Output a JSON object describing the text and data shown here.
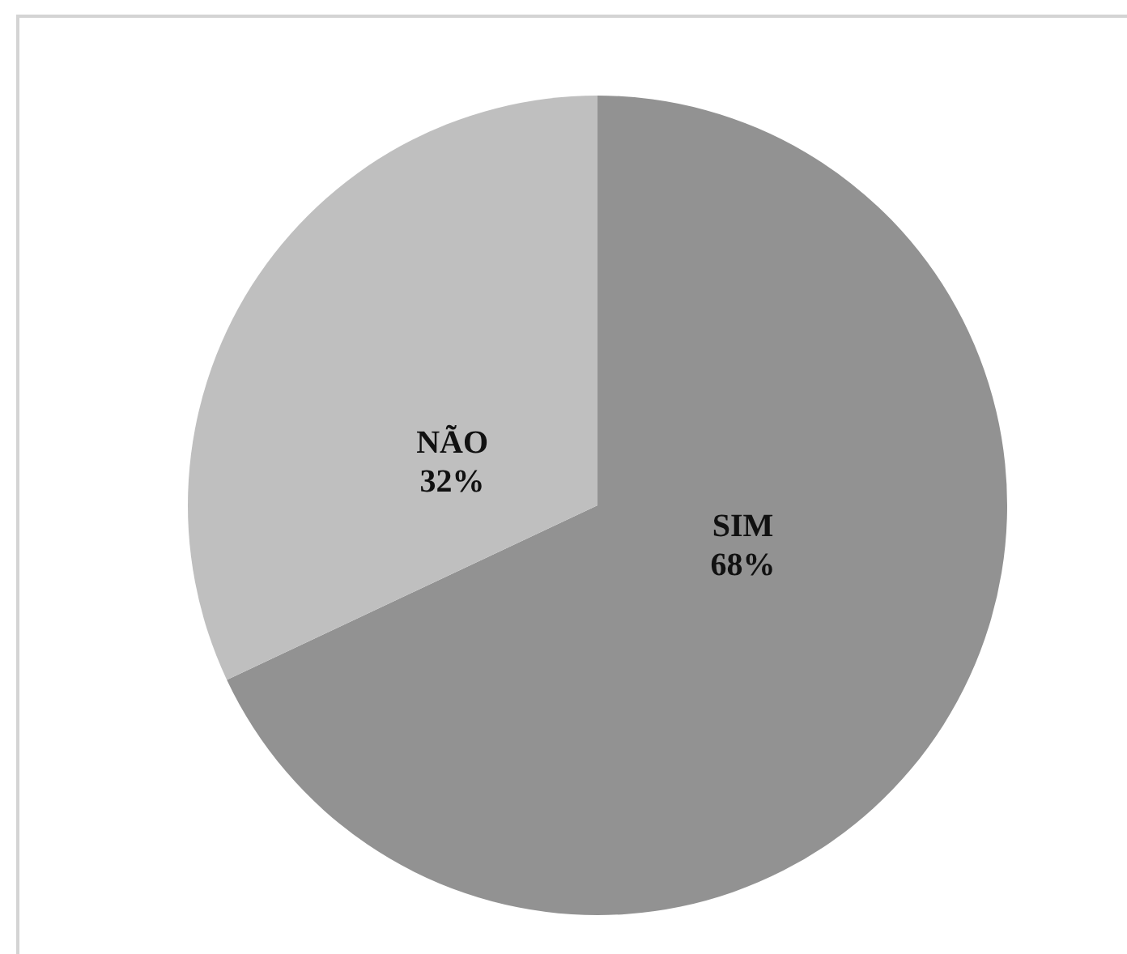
{
  "chart_data": {
    "type": "pie",
    "categories": [
      "SIM",
      "NÃO"
    ],
    "values": [
      68,
      32
    ],
    "colors": [
      "#929292",
      "#bfbfbf"
    ],
    "value_labels": [
      "68%",
      "32%"
    ]
  }
}
